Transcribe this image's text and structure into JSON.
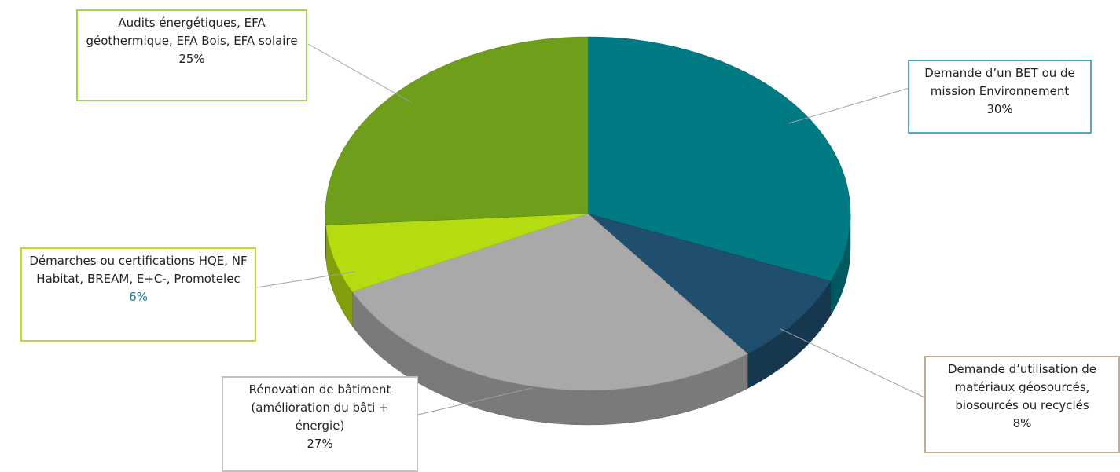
{
  "chart_data": {
    "type": "pie",
    "title": "",
    "slices": [
      {
        "label": "Demande d’un BET ou de mission Environnement",
        "value": 30,
        "display": "30%",
        "color": "#007b83"
      },
      {
        "label": "Demande d’utilisation de matériaux géosourcés, biosourcés ou recyclés",
        "value": 8,
        "display": "8%",
        "color": "#1f4e6e"
      },
      {
        "label": "Rénovation de bâtiment (amélioration du bâti + énergie)",
        "value": 27,
        "display": "27%",
        "color": "#a9a9a9"
      },
      {
        "label": "Démarches ou certifications HQE, NF Habitat, BREAM, E+C-, Promotelec",
        "value": 6,
        "display": "6%",
        "color": "#b5dc10"
      },
      {
        "label": "Audits énergétiques, EFA géothermique, EFA Bois, EFA solaire",
        "value": 25,
        "display": "25%",
        "color": "#6e9e1a"
      }
    ],
    "legend": "none",
    "data_labels": "callouts"
  }
}
